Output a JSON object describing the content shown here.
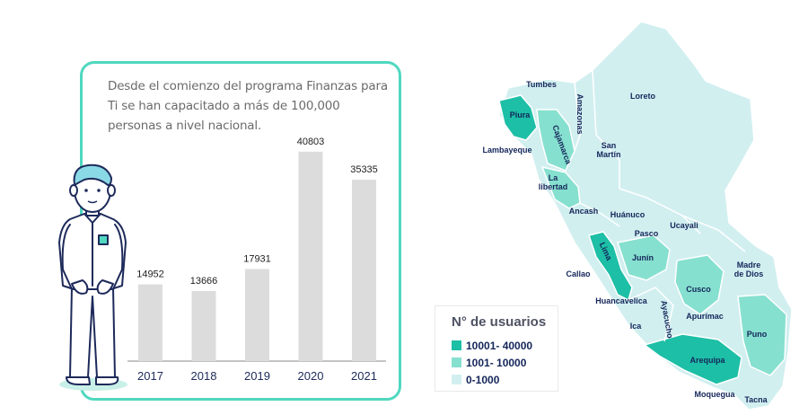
{
  "info_text": "Desde el comienzo del programa Finanzas para Ti se han capacitado a más de 100,000 personas a nivel nacional.",
  "chart_data": {
    "type": "bar",
    "categories": [
      "2017",
      "2018",
      "2019",
      "2020",
      "2021"
    ],
    "values": [
      14952,
      13666,
      17931,
      40803,
      35335
    ],
    "ylim": [
      0,
      42000
    ],
    "grid": false,
    "bar_color": "#dcdcdc"
  },
  "map": {
    "regions": [
      {
        "name": "Tumbes",
        "level": "low"
      },
      {
        "name": "Piura",
        "level": "high"
      },
      {
        "name": "Lambayeque",
        "level": "low"
      },
      {
        "name": "Amazonas",
        "level": "low"
      },
      {
        "name": "Cajamarca",
        "level": "mid"
      },
      {
        "name": "Loreto",
        "level": "low"
      },
      {
        "name": "San Martín",
        "level": "low"
      },
      {
        "name": "La libertad",
        "level": "mid"
      },
      {
        "name": "Ancash",
        "level": "low"
      },
      {
        "name": "Huánuco",
        "level": "low"
      },
      {
        "name": "Ucayali",
        "level": "low"
      },
      {
        "name": "Pasco",
        "level": "low"
      },
      {
        "name": "Lima",
        "level": "high"
      },
      {
        "name": "Junín",
        "level": "mid"
      },
      {
        "name": "Callao",
        "level": "low"
      },
      {
        "name": "Madre de Dios",
        "level": "low"
      },
      {
        "name": "Cusco",
        "level": "mid"
      },
      {
        "name": "Huancavelica",
        "level": "low"
      },
      {
        "name": "Ayacucho",
        "level": "low"
      },
      {
        "name": "Apurímac",
        "level": "low"
      },
      {
        "name": "Ica",
        "level": "low"
      },
      {
        "name": "Puno",
        "level": "mid"
      },
      {
        "name": "Arequipa",
        "level": "high"
      },
      {
        "name": "Moquegua",
        "level": "low"
      },
      {
        "name": "Tacna",
        "level": "low"
      }
    ]
  },
  "legend": {
    "title": "N° de usuarios",
    "items": [
      {
        "label": "10001- 40000",
        "color": "#1dbfa6"
      },
      {
        "label": "1001- 10000",
        "color": "#86e0cf"
      },
      {
        "label": "0-1000",
        "color": "#d2eff0"
      }
    ]
  },
  "colors": {
    "panel_border": "#4fd8bf",
    "label": "#14265a",
    "high": "#1dbfa6",
    "mid": "#86e0cf",
    "low": "#d2eff0"
  }
}
